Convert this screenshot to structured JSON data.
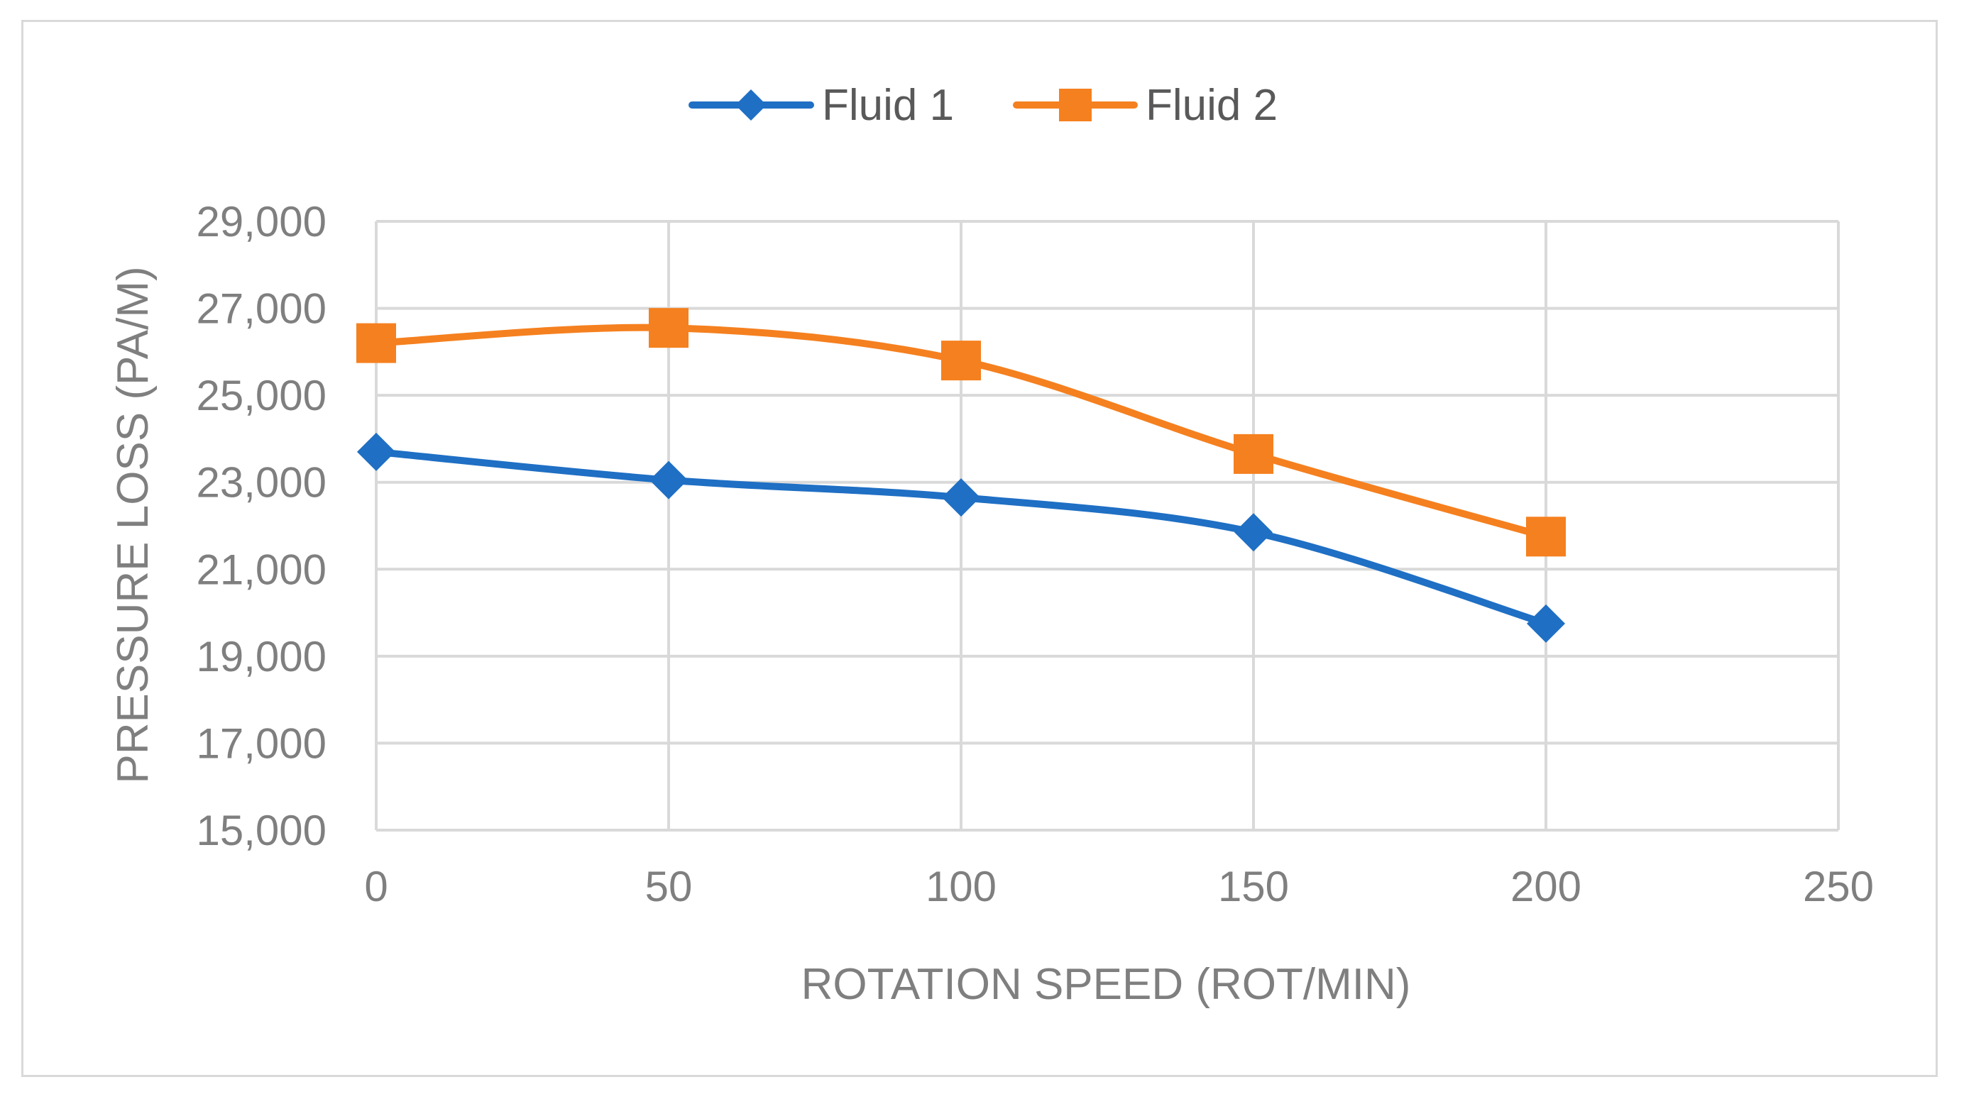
{
  "chart_data": {
    "type": "line",
    "title": "",
    "xlabel": "ROTATION SPEED (ROT/MIN)",
    "ylabel": "PRESSURE LOSS (PA/M)",
    "xlim": [
      0,
      250
    ],
    "ylim": [
      15000,
      29000
    ],
    "x_ticks": [
      0,
      50,
      100,
      150,
      200,
      250
    ],
    "y_ticks": [
      15000,
      17000,
      19000,
      21000,
      23000,
      25000,
      27000,
      29000
    ],
    "x_tick_labels": [
      "0",
      "50",
      "100",
      "150",
      "200",
      "250"
    ],
    "y_tick_labels": [
      "15,000",
      "17,000",
      "19,000",
      "21,000",
      "23,000",
      "25,000",
      "27,000",
      "29,000"
    ],
    "grid": true,
    "legend_position": "top",
    "x": [
      0,
      50,
      100,
      150,
      200
    ],
    "series": [
      {
        "name": "Fluid 1",
        "values": [
          23700,
          23050,
          22650,
          21850,
          19750
        ],
        "color": "#1f6fc4",
        "marker": "diamond"
      },
      {
        "name": "Fluid 2",
        "values": [
          26200,
          26550,
          25800,
          23650,
          21750
        ],
        "color": "#f5801f",
        "marker": "square"
      }
    ]
  }
}
